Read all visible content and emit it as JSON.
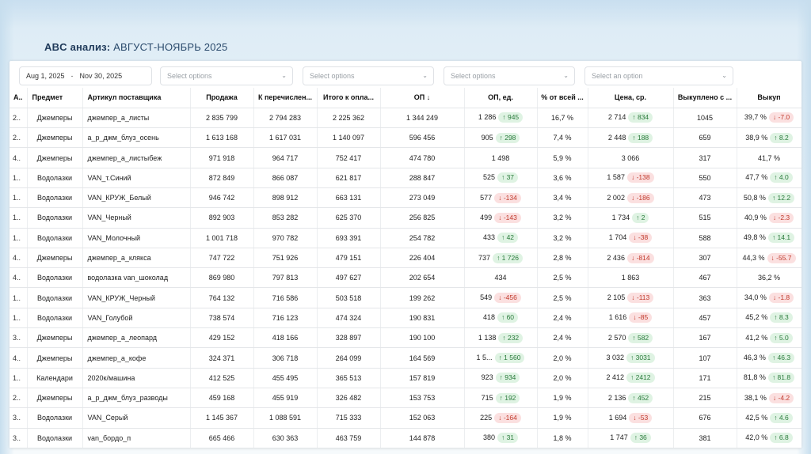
{
  "slide": {
    "title_bold": "ABC анализ:",
    "title_rest": "АВГУСТ-НОЯБРЬ 2025"
  },
  "filters": {
    "date_start": "Aug 1, 2025",
    "date_sep": "-",
    "date_end": "Nov 30, 2025",
    "select1": "Select options",
    "select2": "Select options",
    "select3": "Select options",
    "select4": "Select an option"
  },
  "table": {
    "headers": [
      "А..",
      "Предмет",
      "Артикул поставщика",
      "Продажа",
      "К перечислен...",
      "Итого к опла...",
      "ОП ↓",
      "ОП, ед.",
      "% от всей ...",
      "Цена, ср.",
      "Выкуплено с ...",
      "Выкуп"
    ],
    "rows": [
      {
        "a": "2..",
        "subj": "Джемперы",
        "art": "джемпер_а_листы",
        "sale": "2 835 799",
        "transfer": "2 794 283",
        "total": "2 225 362",
        "op": "1 344 249",
        "opu": "1 286",
        "opu_d": "↑ 945",
        "opu_t": "up",
        "pct": "16,7 %",
        "price": "2 714",
        "price_d": "↑ 834",
        "price_t": "up",
        "bought": "1045",
        "buy": "39,7 %",
        "buy_d": "↓ -7.0",
        "buy_t": "down"
      },
      {
        "a": "2..",
        "subj": "Джемперы",
        "art": "а_р_джм_блуз_осень",
        "sale": "1 613 168",
        "transfer": "1 617 031",
        "total": "1 140 097",
        "op": "596 456",
        "opu": "905",
        "opu_d": "↑ 298",
        "opu_t": "up",
        "pct": "7,4 %",
        "price": "2 448",
        "price_d": "↑ 188",
        "price_t": "up",
        "bought": "659",
        "buy": "38,9 %",
        "buy_d": "↑ 8.2",
        "buy_t": "up"
      },
      {
        "a": "4..",
        "subj": "Джемперы",
        "art": "джемпер_а_листыбеж",
        "sale": "971 918",
        "transfer": "964 717",
        "total": "752 417",
        "op": "474 780",
        "opu": "1 498",
        "opu_d": "",
        "opu_t": "",
        "pct": "5,9 %",
        "price": "3 066",
        "price_d": "",
        "price_t": "",
        "bought": "317",
        "buy": "41,7 %",
        "buy_d": "",
        "buy_t": ""
      },
      {
        "a": "1..",
        "subj": "Водолазки",
        "art": "VAN_т.Синий",
        "sale": "872 849",
        "transfer": "866 087",
        "total": "621 817",
        "op": "288 847",
        "opu": "525",
        "opu_d": "↑ 37",
        "opu_t": "up",
        "pct": "3,6 %",
        "price": "1 587",
        "price_d": "↓ -138",
        "price_t": "down",
        "bought": "550",
        "buy": "47,7 %",
        "buy_d": "↑ 4.0",
        "buy_t": "up"
      },
      {
        "a": "1..",
        "subj": "Водолазки",
        "art": "VAN_КРУЖ_Белый",
        "sale": "946 742",
        "transfer": "898 912",
        "total": "663 131",
        "op": "273 049",
        "opu": "577",
        "opu_d": "↓ -134",
        "opu_t": "down",
        "pct": "3,4 %",
        "price": "2 002",
        "price_d": "↓ -186",
        "price_t": "down",
        "bought": "473",
        "buy": "50,8 %",
        "buy_d": "↑ 12.2",
        "buy_t": "up"
      },
      {
        "a": "1..",
        "subj": "Водолазки",
        "art": "VAN_Черный",
        "sale": "892 903",
        "transfer": "853 282",
        "total": "625 370",
        "op": "256 825",
        "opu": "499",
        "opu_d": "↓ -143",
        "opu_t": "down",
        "pct": "3,2 %",
        "price": "1 734",
        "price_d": "↑ 2",
        "price_t": "up",
        "bought": "515",
        "buy": "40,9 %",
        "buy_d": "↓ -2.3",
        "buy_t": "down"
      },
      {
        "a": "1..",
        "subj": "Водолазки",
        "art": "VAN_Молочный",
        "sale": "1 001 718",
        "transfer": "970 782",
        "total": "693 391",
        "op": "254 782",
        "opu": "433",
        "opu_d": "↑ 42",
        "opu_t": "up",
        "pct": "3,2 %",
        "price": "1 704",
        "price_d": "↓ -38",
        "price_t": "down",
        "bought": "588",
        "buy": "49,8 %",
        "buy_d": "↑ 14.1",
        "buy_t": "up"
      },
      {
        "a": "4..",
        "subj": "Джемперы",
        "art": "джемпер_а_клякса",
        "sale": "747 722",
        "transfer": "751 926",
        "total": "479 151",
        "op": "226 404",
        "opu": "737",
        "opu_d": "↑ 1 726",
        "opu_t": "up",
        "pct": "2,8 %",
        "price": "2 436",
        "price_d": "↓ -814",
        "price_t": "down",
        "bought": "307",
        "buy": "44,3 %",
        "buy_d": "↓ -55.7",
        "buy_t": "down"
      },
      {
        "a": "4..",
        "subj": "Водолазки",
        "art": "водолазка van_шоколад",
        "sale": "869 980",
        "transfer": "797 813",
        "total": "497 627",
        "op": "202 654",
        "opu": "434",
        "opu_d": "",
        "opu_t": "",
        "pct": "2,5 %",
        "price": "1 863",
        "price_d": "",
        "price_t": "",
        "bought": "467",
        "buy": "36,2 %",
        "buy_d": "",
        "buy_t": ""
      },
      {
        "a": "1..",
        "subj": "Водолазки",
        "art": "VAN_КРУЖ_Черный",
        "sale": "764 132",
        "transfer": "716 586",
        "total": "503 518",
        "op": "199 262",
        "opu": "549",
        "opu_d": "↓ -456",
        "opu_t": "down",
        "pct": "2,5 %",
        "price": "2 105",
        "price_d": "↓ -113",
        "price_t": "down",
        "bought": "363",
        "buy": "34,0 %",
        "buy_d": "↓ -1.8",
        "buy_t": "down"
      },
      {
        "a": "1..",
        "subj": "Водолазки",
        "art": "VAN_Голубой",
        "sale": "738 574",
        "transfer": "716 123",
        "total": "474 324",
        "op": "190 831",
        "opu": "418",
        "opu_d": "↑ 60",
        "opu_t": "up",
        "pct": "2,4 %",
        "price": "1 616",
        "price_d": "↓ -85",
        "price_t": "down",
        "bought": "457",
        "buy": "45,2 %",
        "buy_d": "↑ 8.3",
        "buy_t": "up"
      },
      {
        "a": "3..",
        "subj": "Джемперы",
        "art": "джемпер_а_леопард",
        "sale": "429 152",
        "transfer": "418 166",
        "total": "328 897",
        "op": "190 100",
        "opu": "1 138",
        "opu_d": "↑ 232",
        "opu_t": "up",
        "pct": "2,4 %",
        "price": "2 570",
        "price_d": "↑ 582",
        "price_t": "up",
        "bought": "167",
        "buy": "41,2 %",
        "buy_d": "↑ 5.0",
        "buy_t": "up"
      },
      {
        "a": "4..",
        "subj": "Джемперы",
        "art": "джемпер_а_кофе",
        "sale": "324 371",
        "transfer": "306 718",
        "total": "264 099",
        "op": "164 569",
        "opu": "1 5...",
        "opu_d": "↑ 1 560",
        "opu_t": "up",
        "pct": "2,0 %",
        "price": "3 032",
        "price_d": "↑ 3031",
        "price_t": "up",
        "bought": "107",
        "buy": "46,3 %",
        "buy_d": "↑ 46.3",
        "buy_t": "up"
      },
      {
        "a": "1..",
        "subj": "Календари",
        "art": "2020к/машина",
        "sale": "412 525",
        "transfer": "455 495",
        "total": "365 513",
        "op": "157 819",
        "opu": "923",
        "opu_d": "↑ 934",
        "opu_t": "up",
        "pct": "2,0 %",
        "price": "2 412",
        "price_d": "↑ 2412",
        "price_t": "up",
        "bought": "171",
        "buy": "81,8 %",
        "buy_d": "↑ 81.8",
        "buy_t": "up"
      },
      {
        "a": "2..",
        "subj": "Джемперы",
        "art": "а_р_джм_блуз_разводы",
        "sale": "459 168",
        "transfer": "455 919",
        "total": "326 482",
        "op": "153 753",
        "opu": "715",
        "opu_d": "↑ 192",
        "opu_t": "up",
        "pct": "1,9 %",
        "price": "2 136",
        "price_d": "↑ 452",
        "price_t": "up",
        "bought": "215",
        "buy": "38,1 %",
        "buy_d": "↓ -4.2",
        "buy_t": "down"
      },
      {
        "a": "3..",
        "subj": "Водолазки",
        "art": "VAN_Серый",
        "sale": "1 145 367",
        "transfer": "1 088 591",
        "total": "715 333",
        "op": "152 063",
        "opu": "225",
        "opu_d": "↓ -164",
        "opu_t": "down",
        "pct": "1,9 %",
        "price": "1 694",
        "price_d": "↓ -53",
        "price_t": "down",
        "bought": "676",
        "buy": "42,5 %",
        "buy_d": "↑ 4.6",
        "buy_t": "up"
      },
      {
        "a": "3..",
        "subj": "Водолазки",
        "art": "van_бордо_п",
        "sale": "665 466",
        "transfer": "630 363",
        "total": "463 759",
        "op": "144 878",
        "opu": "380",
        "opu_d": "↑ 31",
        "opu_t": "up",
        "pct": "1,8 %",
        "price": "1 747",
        "price_d": "↑ 36",
        "price_t": "up",
        "bought": "381",
        "buy": "42,0 %",
        "buy_d": "↑ 6.8",
        "buy_t": "up"
      }
    ]
  },
  "colors": {
    "up_bg": "#dff3e3",
    "up_fg": "#2a7a3b",
    "down_bg": "#fbe0e0",
    "down_fg": "#c0392b"
  }
}
